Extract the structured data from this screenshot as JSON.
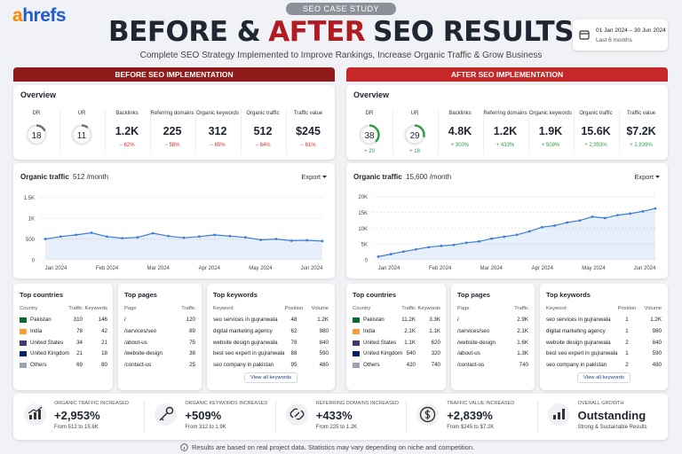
{
  "header": {
    "logo_mark": "a",
    "logo_text": "hrefs",
    "badge": "SEO CASE STUDY",
    "title_before": "BEFORE &",
    "title_accent": "AFTER",
    "title_after": "SEO RESULTS",
    "subtitle": "Complete SEO Strategy Implemented to Improve Rankings, Increase Organic Traffic & Grow Business",
    "date_range": "01 Jan 2024 – 30 Jun 2024",
    "date_note": "Last 6 months",
    "accent_color": "#b01c24"
  },
  "panels": [
    {
      "label": "BEFORE SEO IMPLEMENTATION",
      "header_color": "#8e1a1a",
      "change_color": "#d32f2f",
      "gauge_color": "#6b7280",
      "overview": {
        "title": "Overview",
        "gauges": [
          {
            "label": "DR",
            "value": 18
          },
          {
            "label": "UR",
            "value": 11
          }
        ],
        "metrics": [
          {
            "label": "Backlinks",
            "value": "1.2K",
            "change": "− 62%"
          },
          {
            "label": "Referring domains",
            "value": "225",
            "change": "− 58%"
          },
          {
            "label": "Organic keywords",
            "value": "312",
            "change": "− 65%"
          },
          {
            "label": "Organic traffic",
            "value": "512",
            "change": "− 64%"
          },
          {
            "label": "Traffic value",
            "value": "$245",
            "change": "− 61%"
          }
        ]
      },
      "chart": {
        "type": "line",
        "title": "Organic traffic",
        "subtitle": "512 /month",
        "export": "Export",
        "color": "#3b7dd8",
        "xticks": [
          "Jan 2024",
          "Feb 2024",
          "Mar 2024",
          "Apr 2024",
          "May 2024",
          "Jun 2024"
        ],
        "values": [
          500,
          560,
          600,
          650,
          560,
          520,
          540,
          640,
          570,
          530,
          560,
          600,
          570,
          540,
          480,
          500,
          460,
          470,
          450
        ],
        "ylim": [
          0,
          1600
        ],
        "yticks": [
          0,
          500,
          {
            "value": 1000,
            "label": "1K"
          },
          {
            "value": 1500,
            "label": "1.5K"
          }
        ],
        "grid": true
      },
      "countries": {
        "title": "Top countries",
        "columns": [
          "Country",
          "Traffic",
          "Keywords"
        ],
        "rows": [
          [
            "Pakistan",
            "310",
            "146"
          ],
          [
            "India",
            "78",
            "42"
          ],
          [
            "United States",
            "34",
            "21"
          ],
          [
            "United Kingdom",
            "21",
            "18"
          ],
          [
            "Others",
            "69",
            "80"
          ]
        ]
      },
      "pages": {
        "title": "Top pages",
        "columns": [
          "Page",
          "Traffic"
        ],
        "rows": [
          [
            "/",
            "120"
          ],
          [
            "/services/seo",
            "89"
          ],
          [
            "/about-us",
            "75"
          ],
          [
            "/website-design",
            "38"
          ],
          [
            "/contact-us",
            "25"
          ]
        ]
      },
      "keywords": {
        "title": "Top keywords",
        "columns": [
          "Keyword",
          "Position",
          "Volume"
        ],
        "rows": [
          [
            "seo services in gujranwala",
            "48",
            "1.2K"
          ],
          [
            "digital marketing agency",
            "62",
            "980"
          ],
          [
            "website design gujranwala",
            "78",
            "840"
          ],
          [
            "best seo expert in gujranwala",
            "88",
            "590"
          ],
          [
            "seo company in pakistan",
            "95",
            "480"
          ]
        ],
        "button": "View all keywords"
      }
    },
    {
      "label": "AFTER SEO IMPLEMENTATION",
      "header_color": "#c62828",
      "change_color": "#2e9e44",
      "gauge_color": "#2e9e44",
      "overview": {
        "title": "Overview",
        "gauges": [
          {
            "label": "DR",
            "value": 38,
            "change": "+ 20"
          },
          {
            "label": "UR",
            "value": 29,
            "change": "+ 18"
          }
        ],
        "metrics": [
          {
            "label": "Backlinks",
            "value": "4.8K",
            "change": "+ 300%"
          },
          {
            "label": "Referring domains",
            "value": "1.2K",
            "change": "+ 433%"
          },
          {
            "label": "Organic keywords",
            "value": "1.9K",
            "change": "+ 509%"
          },
          {
            "label": "Organic traffic",
            "value": "15.6K",
            "change": "+ 2,953%"
          },
          {
            "label": "Traffic value",
            "value": "$7.2K",
            "change": "+ 2,839%"
          }
        ]
      },
      "chart": {
        "type": "line",
        "title": "Organic traffic",
        "subtitle": "15,600 /month",
        "export": "Export",
        "color": "#3b7dd8",
        "xticks": [
          "Jan 2024",
          "Feb 2024",
          "Mar 2024",
          "Apr 2024",
          "May 2024",
          "Jun 2024"
        ],
        "values": [
          1000,
          1800,
          2600,
          3300,
          4000,
          4400,
          4700,
          5400,
          5800,
          6700,
          7300,
          7900,
          9000,
          10300,
          10800,
          11800,
          12400,
          13600,
          13200,
          14100,
          14600,
          15300,
          16200
        ],
        "ylim": [
          0,
          21000
        ],
        "yticks": [
          0,
          {
            "value": 5000,
            "label": "5K"
          },
          {
            "value": 10000,
            "label": "10K"
          },
          {
            "value": 15000,
            "label": "15K"
          },
          {
            "value": 20000,
            "label": "20K"
          }
        ],
        "grid": true
      },
      "countries": {
        "title": "Top countries",
        "columns": [
          "Country",
          "Traffic",
          "Keywords"
        ],
        "rows": [
          [
            "Pakistan",
            "11.2K",
            "3.3K"
          ],
          [
            "India",
            "2.1K",
            "1.1K"
          ],
          [
            "United States",
            "1.1K",
            "620"
          ],
          [
            "United Kingdom",
            "540",
            "320"
          ],
          [
            "Others",
            "420",
            "740"
          ]
        ]
      },
      "pages": {
        "title": "Top pages",
        "columns": [
          "Page",
          "Traffic"
        ],
        "rows": [
          [
            "/",
            "2.9K"
          ],
          [
            "/services/seo",
            "2.1K"
          ],
          [
            "/website-design",
            "1.6K"
          ],
          [
            "/about-us",
            "1.3K"
          ],
          [
            "/contact-us",
            "740"
          ]
        ]
      },
      "keywords": {
        "title": "Top keywords",
        "columns": [
          "Keyword",
          "Position",
          "Volume"
        ],
        "rows": [
          [
            "seo services in gujranwala",
            "1",
            "1.2K"
          ],
          [
            "digital marketing agency",
            "1",
            "980"
          ],
          [
            "website design gujranwala",
            "2",
            "840"
          ],
          [
            "best seo expert in gujranwala",
            "1",
            "590"
          ],
          [
            "seo company in pakistan",
            "2",
            "480"
          ]
        ],
        "button": "View all keywords"
      }
    }
  ],
  "summary": [
    {
      "label": "ORGANIC TRAFFIC INCREASED",
      "value": "+2,953%",
      "note": "From 512 to 15.6K"
    },
    {
      "label": "ORGANIC KEYWORDS INCREASED",
      "value": "+509%",
      "note": "From 312 to 1.9K"
    },
    {
      "label": "REFERRING DOMAINS INCREASED",
      "value": "+433%",
      "note": "From 225 to 1.2K"
    },
    {
      "label": "TRAFFIC VALUE INCREASED",
      "value": "+2,839%",
      "note": "From $245 to $7.2K"
    },
    {
      "label": "OVERALL GROWTH",
      "value": "Outstanding",
      "note": "Strong & Sustainable Results"
    }
  ],
  "footer": "Results are based on real project data. Statistics may vary depending on niche and competition."
}
